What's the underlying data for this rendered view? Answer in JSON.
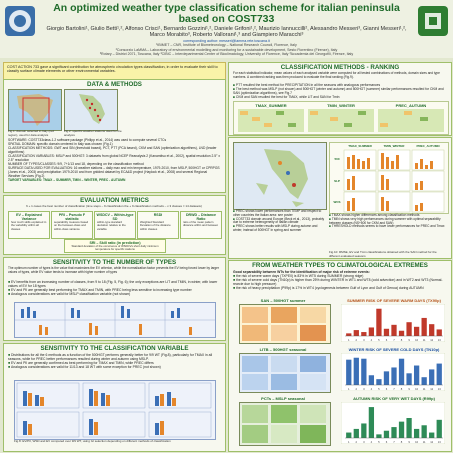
{
  "header": {
    "title": "An optimized weather type classification scheme for italian peninsula based on COST733",
    "authors": "Giorgio Bartolini¹, Giulio Betti¹,², Alfonso Crisci¹, Bernardo Gozzini¹,², Daniele Grifoni¹,², Maurizio Iannuccilli², Alessandro Messeri³, Gianni Messeri¹,², Marco Morabito³, Roberto Vallorani¹,³ and Giampiero Maracchi³",
    "contact": "corresponding author: messeri@lamma.rete.toscana.it",
    "affiliations": [
      "¹IBIMET – CNR, Institute of Biometeorology – National Research Council, Florence, Italy",
      "²Consorzio LaMMA – Laboratory of environmental modelling and monitoring for a sustainable development, Sesto Fiorentino (Firenze), Italy",
      "³Rotary – District 2071, Toscana, Italy  ³CIBIC – Interdepartmental Center of Bioclimatology, University of Florence, Italy  ³Accademia dei Georgofili, Firenze, Italy"
    ]
  },
  "intro": {
    "text": "COST ACTION 733 gave a significant contribution for atmospheric circulation types classification, in order to evaluate their skill to classify surface climate elements or other environmental variables."
  },
  "data_methods": {
    "heading": "DATA & METHODS",
    "paragraphs": [
      "SOFTWARE: COST733class-1.2 software package (Philipp et al., 2014) was used to compute several CTCs",
      "SPATIAL DOMAIN: specific domain centered in Italy was chosen (Fig.1)",
      "CLASSIFICATION METHODS: GWT and SIN (threshold based), PCT, PTT (PCA based), CKM and SAN (optimization algorithms), LND (leader algorithms)",
      "CLASSIFICATION VARIABLES: MSLP and 500HGT: 3 datasets from global NCEP Reanalysis 2 (Kanamitsu et al., 2002), spatial resolution 2.5° x 2.5° resolution",
      "NUMBER OF TYPES/CLASSES: 9/9, 7+1/13 and 18, depending on the classification method",
      "SURFACE DATA USED FOR EVALUATION: 16 weather stations – daily max and min temperature, 1979-2010, from MSLP, 500HGT or CPRPGS (Jones et al., 2003) and precipitation 1979-2010 and from gridded dataset by ECA&D project (Haylock et al., 2008) and several Regional Weather Services (Fig.2)",
      "TARGET VARIABLES: TMAX – SUMMER, TMIN – WINTER, PREC - AUTUMN"
    ],
    "fig1_caption": "Fig.1: domain selected in Italy (red region), used for data analysis",
    "fig2_caption": "Fig.2: specific weather stations used for the analysis"
  },
  "evaluation": {
    "heading": "EVALUATION METRICS",
    "note": "6 + 1 cases the best number of classification (time steps – 9 classification the + 9 classification methods – x 3 classes = 14 datasets)",
    "boxes": [
      {
        "title": "EV – Explained Variance",
        "desc": "how much skills explained in the variability within all classes"
      },
      {
        "title": "PRI – Pseudo F statistic",
        "desc": "separability measure based on the between-class and within-class variance"
      },
      {
        "title": "WSDCV – Within-type SD",
        "desc": "within-type standard deviation relative to the variable"
      },
      {
        "title": "RSDI",
        "desc": "Weighted Standard Deviation of the distance within classes"
      },
      {
        "title": "DRWD – Distance Ratio",
        "desc": "ratio of the mean pattern distance within and between"
      }
    ],
    "footnote": "SRI – Skill ratio (in prediction)",
    "footnote2": "Standard deviation of the occurrence of WSDCVs short daily minimum temperature for specific stations"
  },
  "sensitivity_types": {
    "heading": "SENSITIVITY TO THE NUMBER OF TYPES",
    "intro": "The optimum number of types is the value that maximizes the EV criterion, while the normalization factor prevents the EV being forced lower by larger values of types, while EV value tends to increase with higher number of types",
    "bullets": [
      "EV benefits from an increasing number of classes, from 9 to 18 (Fig. 5, Fig. 6); the only exceptions are LIT and TMIN, in winter, with lower values of EV for 18 types",
      "EV and PII are generally best performing for TMAX and TMIN, with PREC being less sensitive to increasing type number",
      "Analogous considerations are valid for MSLP classification variable (not shown)"
    ]
  },
  "sensitivity_seasonal": {
    "heading": "SENSITIVITY TO THE CLASSIFICATION VARIABLE",
    "bullets": [
      "Distributions for all the 6 methods as a function of the 500HGT performs generally better for 9/9 WT (Fig.8), particularly for TMAX in all seasons, while for PREC better performances resulted during winter and autumn using MSLP.",
      "EV and PII are generally confirmed as best performing for TMAX and TMIN, while PREC differs",
      "Analogous considerations are valid for 11/13 and 18 WT with some exception for PREC (not shown)"
    ],
    "caption": "Fig.8: EV/PII, WSD and EV computed over 9/9 WT, using GI selection depending on different methods of classification"
  },
  "ranking": {
    "heading": "CLASSIFICATION METHODS - RANKING",
    "intro": "For each statistical indicator, mean values of each analysed variable were computed for all tested combinations of methods, domain sizes and type numbers. A combined ranking was then produced to evaluate the final ranking (Fig.9).",
    "bullets": [
      "PTT resulted the best method for PRECIPITATION in all the seasons with analogous performances",
      "The best method was MSLP (not shown) and 500HGT (winter and autumn) and 500HGT (summer) similar performances resulted for CKM and SAN (optimization algorithms), see Fig.7",
      "CKM and SAN resulted the best for TMAX, while LIT and SAN for Tmin"
    ],
    "panel_titles": [
      "TMAX_SUMMER",
      "TMIN_WINTER",
      "PREC_AUTUMN"
    ],
    "fig9_caption": "Fig.9: final ranking of the best methods classification for each variable"
  },
  "ranking_detail": {
    "bullets": [
      "PREC shows lower performances than TEMP and respect to other countries the Italian area: see poster",
      "COST733 domain around Europe (Beck et al., 2013), probably due to extreme heterogeneity of Italian climate",
      "PREC shows better results with MSLP during autumn and winter, instead of 500HGT in spring and summer",
      "TMAX shows higher differences among classification methods",
      "TMIN shows very high performances during summer with optimal separability between classes (NS+500 for CKM and SAN)",
      "THRESHOLD methods seems to have lower performances for PREC and Tmax"
    ],
    "fig_caption": "Fig.10: RMSE, EV and Tmin classifications obtained with the SAN method for the different evaluated seasons"
  },
  "bars": {
    "headers": [
      "TMAX_SUMMER",
      "TMIN_WINTER",
      "PREC_AUTUMN"
    ],
    "rows": [
      "500",
      "SLP",
      "WCS"
    ]
  },
  "extreme": {
    "heading": "FROM WEATHER TYPES TO CLIMATOLOGICAL EXTREMES",
    "intro": "Good separability between WTs for the identification of major risk of extreme events:",
    "bullets": [
      "the risk of severe warm days (TXPE0) is 83% in WT5 during SUMMER (strong ridge)",
      "the risk of severe cold days (TN10p) is higher than 25% during WINTER in WT1 and WT8 (cold advection) and in WT2 and WT3 (Normal-rearcie due to high pressure)",
      "the risk of heavy precipitation (P99p) is 17% in WT4 (cyclogenesis between Gulf of Lyon and Gulf of Genoa) during AUTUMN"
    ],
    "map_titles": [
      "SAN – 500HGT summer",
      "LITB – 500HGT seasonal",
      "PCTs – MSLP seasonal"
    ],
    "chart_titles": [
      "SUMMER RISK OF SEVERE WARM DAYS (TX90p)",
      "WINTER RISK OF SEVERE COLD DAYS (TN10p)",
      "AUTUMN RISK OF VERY WET DAYS (R99p)"
    ]
  },
  "chart_data": [
    {
      "type": "bar",
      "title": "SUMMER RISK OF SEVERE WARM DAYS (TX90p)",
      "categories": [
        "1",
        "2",
        "3",
        "4",
        "5",
        "6",
        "7",
        "8",
        "9",
        "10",
        "11",
        "12",
        "13"
      ],
      "values": [
        0.08,
        0.18,
        0.12,
        0.26,
        0.83,
        0.22,
        0.34,
        0.16,
        0.42,
        0.28,
        0.55,
        0.36,
        0.2
      ]
    },
    {
      "type": "bar",
      "title": "WINTER RISK OF SEVERE COLD DAYS (TN10p)",
      "categories": [
        "1",
        "2",
        "3",
        "4",
        "5",
        "6",
        "7",
        "8",
        "9",
        "10",
        "11",
        "12",
        "13"
      ],
      "values": [
        0.26,
        0.28,
        0.27,
        0.1,
        0.06,
        0.14,
        0.18,
        0.27,
        0.12,
        0.2,
        0.08,
        0.16,
        0.22
      ]
    },
    {
      "type": "bar",
      "title": "AUTUMN RISK OF VERY WET DAYS (R99p)",
      "categories": [
        "1",
        "2",
        "3",
        "4",
        "5",
        "6",
        "7",
        "8",
        "9",
        "10",
        "11",
        "12",
        "13"
      ],
      "values": [
        0.03,
        0.05,
        0.08,
        0.17,
        0.02,
        0.04,
        0.06,
        0.09,
        0.11,
        0.05,
        0.07,
        0.03,
        0.1
      ]
    }
  ],
  "colors": {
    "accent": "#1f6b2a",
    "bar_orange": "#e4862b",
    "bar_red": "#c0392b",
    "bar_blue": "#3b6fb6",
    "background": "#e2e8cf"
  }
}
